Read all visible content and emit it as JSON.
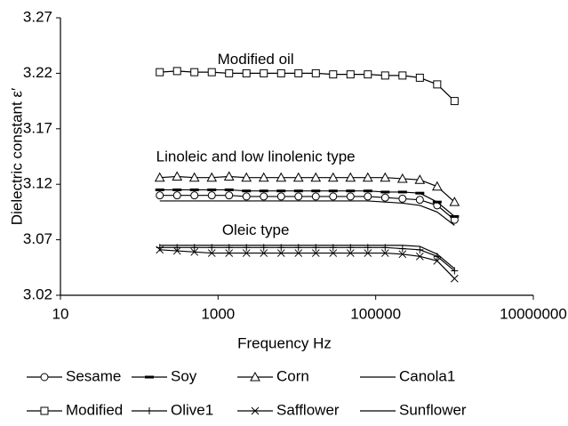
{
  "chart_data": {
    "type": "line",
    "xscale": "log",
    "annotations": [
      {
        "text": "Modified oil",
        "x": 3000,
        "y": 3.232
      },
      {
        "text": "Linoleic and low linolenic type",
        "x": 3000,
        "y": 3.144
      },
      {
        "text": "Oleic type",
        "x": 3000,
        "y": 3.078
      }
    ],
    "xlabel": "Frequency Hz",
    "ylabel": "Dielectric constant ε′",
    "xlim": [
      10,
      10000000
    ],
    "xticks": [
      10,
      1000,
      100000,
      10000000
    ],
    "ylim": [
      3.02,
      3.27
    ],
    "yticks": [
      3.02,
      3.07,
      3.12,
      3.17,
      3.22,
      3.27
    ],
    "x": [
      182,
      302,
      501,
      832,
      1380,
      2290,
      3800,
      6310,
      10470,
      17380,
      28840,
      47860,
      79430,
      131800,
      218800,
      363100,
      602600,
      1000000
    ],
    "series": [
      {
        "name": "Sesame",
        "marker": "circle",
        "color": "#000000",
        "values": [
          3.11,
          3.11,
          3.11,
          3.11,
          3.11,
          3.109,
          3.109,
          3.109,
          3.109,
          3.109,
          3.109,
          3.109,
          3.109,
          3.108,
          3.107,
          3.106,
          3.101,
          3.088
        ]
      },
      {
        "name": "Soy",
        "marker": "dash",
        "color": "#000000",
        "values": [
          3.115,
          3.115,
          3.115,
          3.115,
          3.115,
          3.114,
          3.114,
          3.114,
          3.114,
          3.114,
          3.114,
          3.114,
          3.114,
          3.113,
          3.113,
          3.112,
          3.104,
          3.091
        ]
      },
      {
        "name": "Corn",
        "marker": "triangle",
        "color": "#000000",
        "values": [
          3.126,
          3.127,
          3.126,
          3.126,
          3.127,
          3.126,
          3.126,
          3.126,
          3.126,
          3.126,
          3.126,
          3.126,
          3.126,
          3.126,
          3.125,
          3.124,
          3.118,
          3.104
        ]
      },
      {
        "name": "Canola1",
        "marker": "none",
        "color": "#000000",
        "values": [
          3.065,
          3.065,
          3.065,
          3.065,
          3.065,
          3.065,
          3.065,
          3.065,
          3.065,
          3.065,
          3.065,
          3.065,
          3.065,
          3.065,
          3.065,
          3.064,
          3.057,
          3.044
        ]
      },
      {
        "name": "Modified",
        "marker": "square",
        "color": "#000000",
        "values": [
          3.221,
          3.222,
          3.221,
          3.221,
          3.22,
          3.22,
          3.22,
          3.22,
          3.22,
          3.22,
          3.219,
          3.219,
          3.219,
          3.218,
          3.218,
          3.216,
          3.21,
          3.195
        ]
      },
      {
        "name": "Olive1",
        "marker": "plus",
        "color": "#000000",
        "values": [
          3.063,
          3.063,
          3.063,
          3.063,
          3.063,
          3.063,
          3.063,
          3.063,
          3.063,
          3.063,
          3.063,
          3.063,
          3.063,
          3.063,
          3.062,
          3.061,
          3.055,
          3.042
        ]
      },
      {
        "name": "Safflower",
        "marker": "x",
        "color": "#000000",
        "values": [
          3.061,
          3.06,
          3.059,
          3.058,
          3.058,
          3.058,
          3.058,
          3.058,
          3.058,
          3.058,
          3.058,
          3.058,
          3.058,
          3.058,
          3.057,
          3.055,
          3.051,
          3.035
        ]
      },
      {
        "name": "Sunflower",
        "marker": "none",
        "color": "#000000",
        "values": [
          3.105,
          3.105,
          3.105,
          3.105,
          3.105,
          3.105,
          3.105,
          3.105,
          3.105,
          3.105,
          3.105,
          3.105,
          3.105,
          3.104,
          3.103,
          3.101,
          3.095,
          3.083
        ]
      }
    ]
  }
}
